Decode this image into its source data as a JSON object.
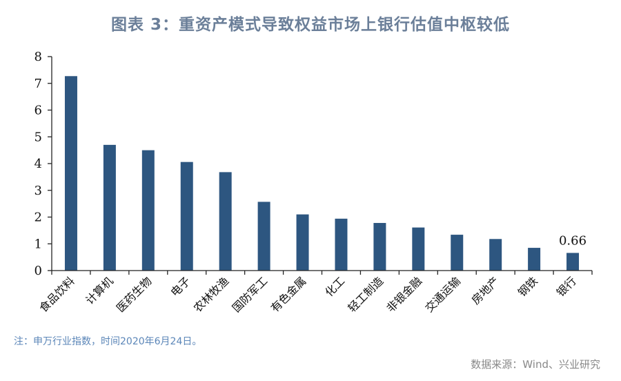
{
  "title": "图表 3：重资产模式导致权益市场上银行估值中枢较低",
  "note": "注：申万行业指数，时间2020年6月24日。",
  "source": "数据来源：Wind、兴业研究",
  "colors": {
    "bar": "#2d5680",
    "title": "#6b7f99",
    "note": "#5b86b8",
    "source": "#888888"
  },
  "chart_data": {
    "type": "bar",
    "categories": [
      "食品饮料",
      "计算机",
      "医药生物",
      "电子",
      "农林牧渔",
      "国防军工",
      "有色金属",
      "化工",
      "轻工制造",
      "非银金融",
      "交通运输",
      "房地产",
      "钢铁",
      "银行"
    ],
    "values": [
      7.27,
      4.7,
      4.5,
      4.06,
      3.68,
      2.57,
      2.1,
      1.94,
      1.78,
      1.61,
      1.34,
      1.18,
      0.85,
      0.66
    ],
    "data_labels": [
      null,
      null,
      null,
      null,
      null,
      null,
      null,
      null,
      null,
      null,
      null,
      null,
      null,
      "0.66"
    ],
    "yticks": [
      "0",
      "1",
      "2",
      "3",
      "4",
      "5",
      "6",
      "7",
      "8"
    ],
    "ylim": [
      0,
      8
    ],
    "xlabel": "",
    "ylabel": "",
    "grid": false,
    "legend": false
  }
}
